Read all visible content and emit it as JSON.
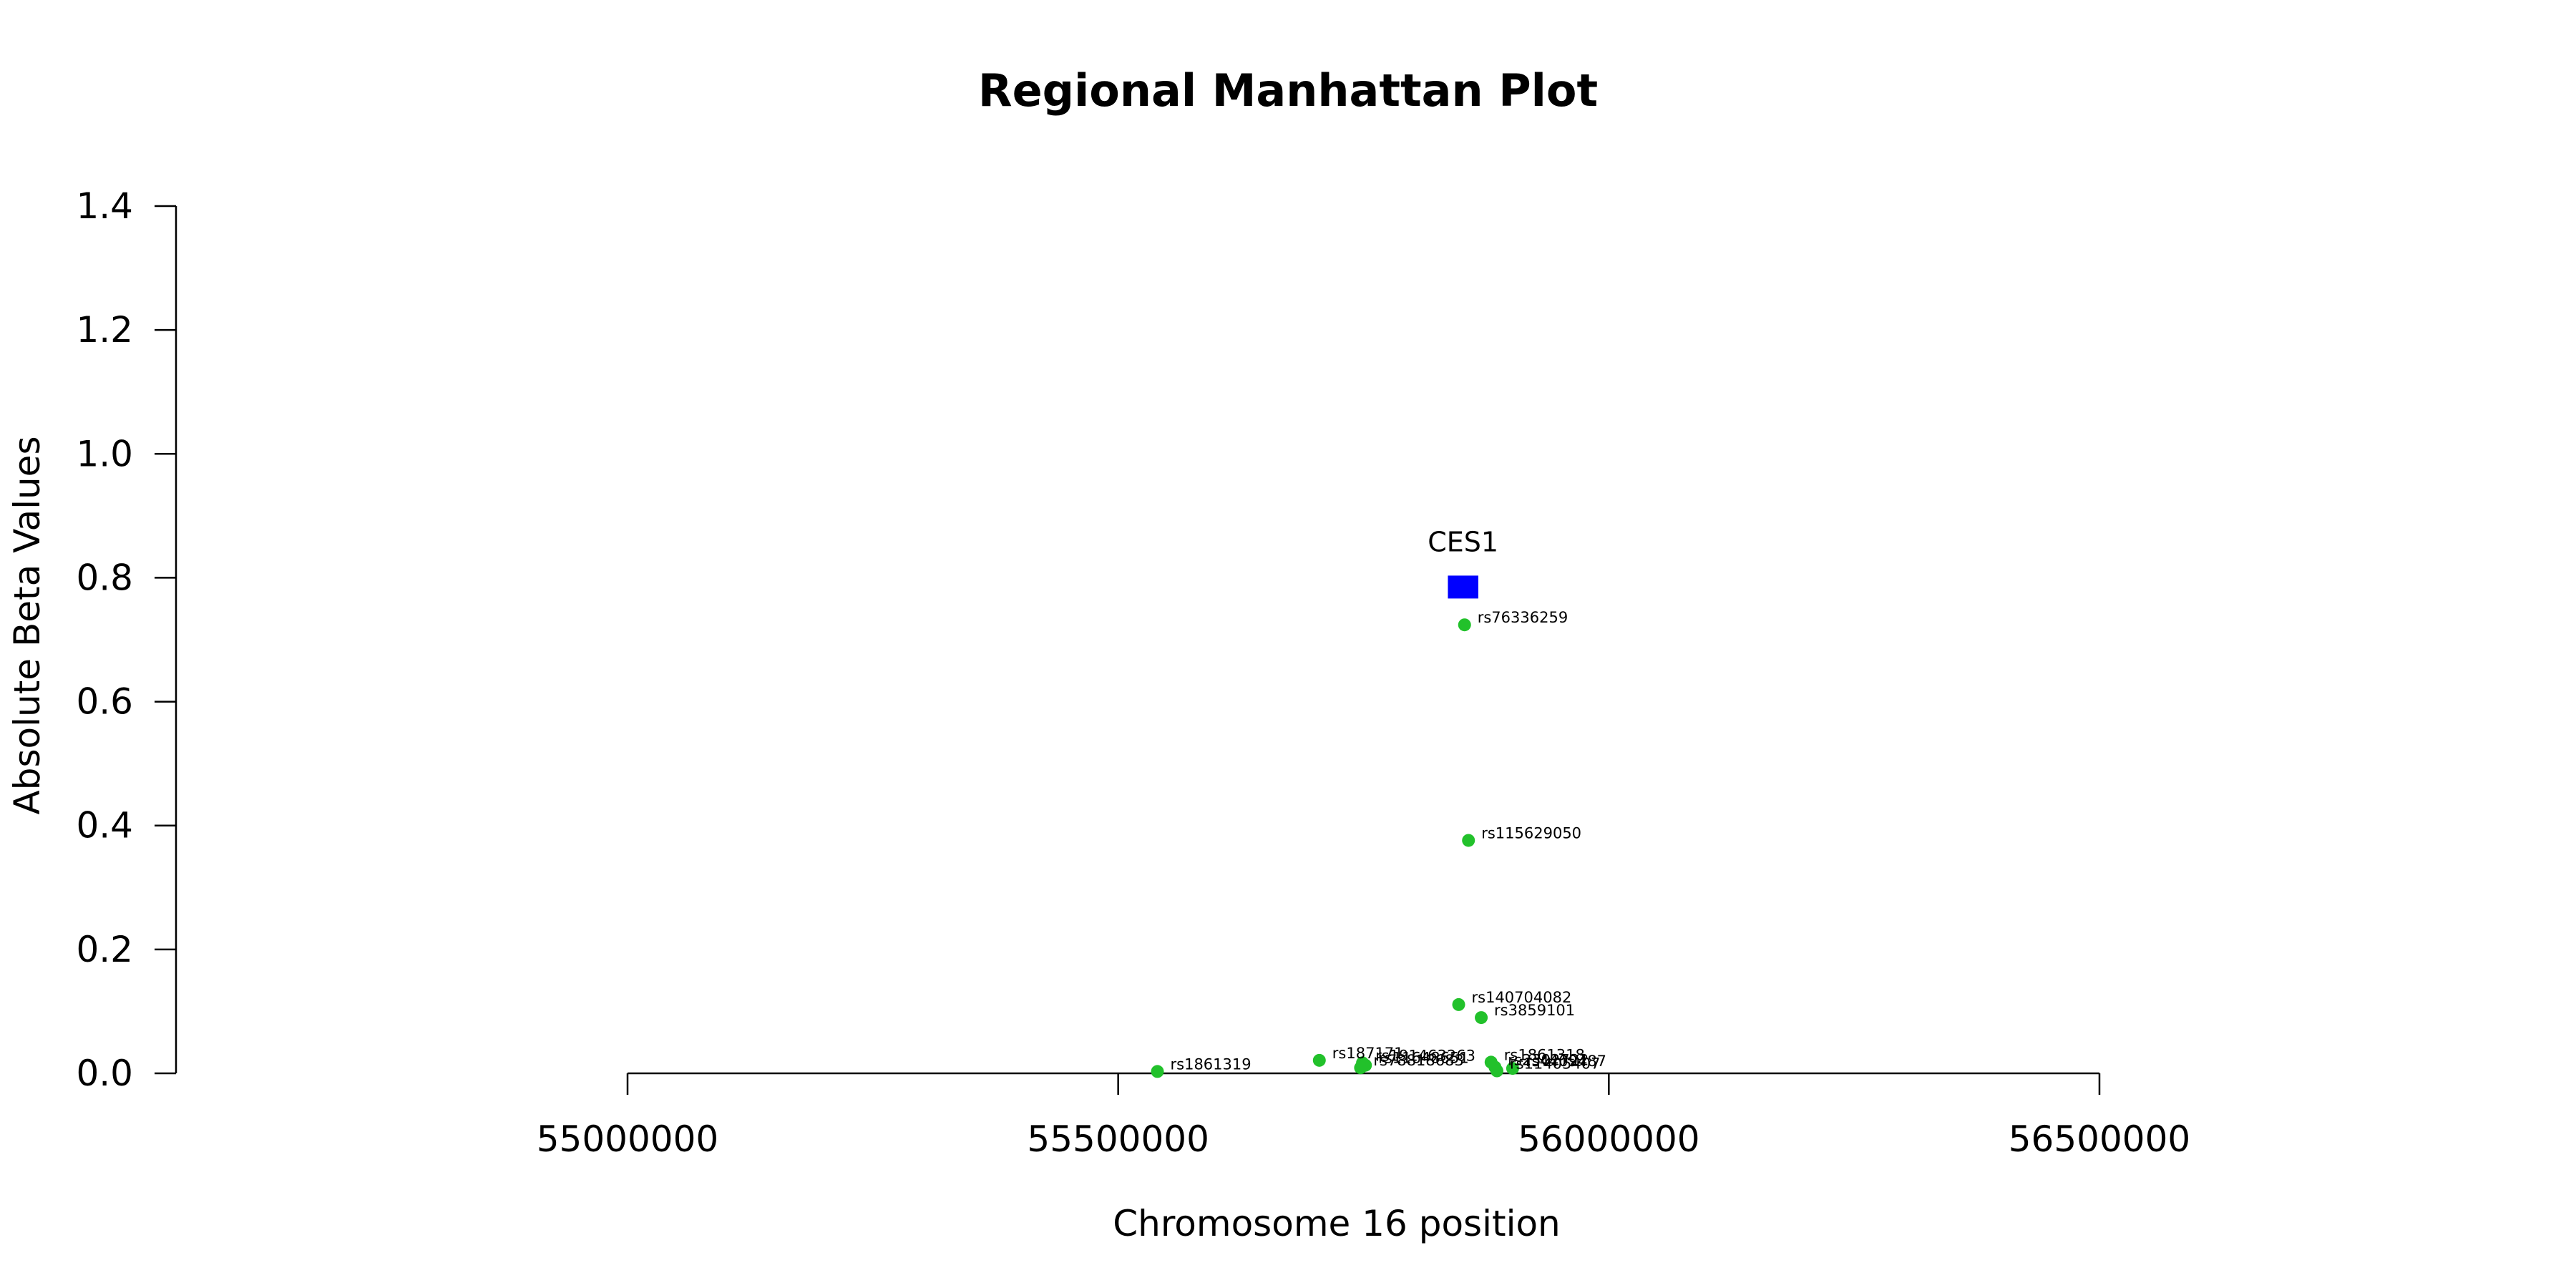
{
  "chart_data": {
    "type": "scatter",
    "title": "Regional Manhattan Plot",
    "xlabel": "Chromosome 16 position",
    "ylabel": "Absolute Beta Values",
    "xlim": [
      55000000,
      56500000
    ],
    "ylim": [
      0,
      1.4
    ],
    "x_ticks": [
      {
        "value": 55000000,
        "label": "55000000"
      },
      {
        "value": 55500000,
        "label": "55500000"
      },
      {
        "value": 56000000,
        "label": "56000000"
      },
      {
        "value": 56500000,
        "label": "56500000"
      }
    ],
    "y_ticks": [
      {
        "value": 0.0,
        "label": "0.0"
      },
      {
        "value": 0.2,
        "label": "0.2"
      },
      {
        "value": 0.4,
        "label": "0.4"
      },
      {
        "value": 0.6,
        "label": "0.6"
      },
      {
        "value": 0.8,
        "label": "0.8"
      },
      {
        "value": 1.0,
        "label": "1.0"
      },
      {
        "value": 1.2,
        "label": "1.2"
      },
      {
        "value": 1.4,
        "label": "1.4"
      }
    ],
    "grid": false,
    "point_color": "#22c12b",
    "gene_color": "#0000ff",
    "genes": [
      {
        "name": "CES1",
        "start": 55836000,
        "end": 55867000,
        "y": 0.785
      }
    ],
    "points": [
      {
        "snp": "rs76336259",
        "x": 55853000,
        "y": 0.724
      },
      {
        "snp": "rs115629050",
        "x": 55857000,
        "y": 0.376
      },
      {
        "snp": "rs140704082",
        "x": 55847000,
        "y": 0.111
      },
      {
        "snp": "rs3859101",
        "x": 55870000,
        "y": 0.09
      },
      {
        "snp": "rs1861319",
        "x": 55540000,
        "y": 0.003
      },
      {
        "snp": "rs187171",
        "x": 55705000,
        "y": 0.021
      },
      {
        "snp": "rs191463263",
        "x": 55749000,
        "y": 0.017
      },
      {
        "snp": "rs11648651",
        "x": 55752000,
        "y": 0.013
      },
      {
        "snp": "rs78818683",
        "x": 55747000,
        "y": 0.009
      },
      {
        "snp": "rs1861318",
        "x": 55880000,
        "y": 0.018
      },
      {
        "snp": "rs2302722",
        "x": 55884000,
        "y": 0.01
      },
      {
        "snp": "rs4409487",
        "x": 55902000,
        "y": 0.008
      },
      {
        "snp": "rs11405407",
        "x": 55886000,
        "y": 0.004
      }
    ]
  }
}
